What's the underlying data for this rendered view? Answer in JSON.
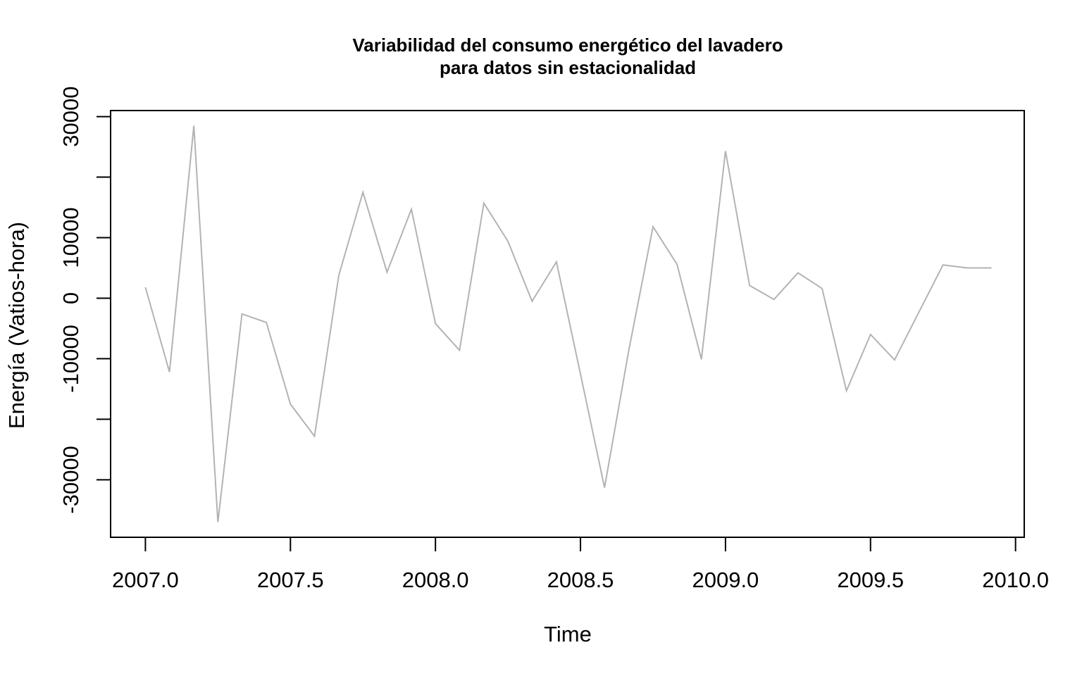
{
  "chart_data": {
    "type": "line",
    "title": "Variabilidad del consumo energético del lavadero",
    "subtitle": "para datos sin estacionalidad",
    "xlabel": "Time",
    "ylabel": "Energía (Vatios-hora)",
    "xlim": [
      2006.88,
      2010.03
    ],
    "ylim": [
      -39500,
      31000
    ],
    "x_ticks": [
      {
        "value": 2007.0,
        "label": "2007.0"
      },
      {
        "value": 2007.5,
        "label": "2007.5"
      },
      {
        "value": 2008.0,
        "label": "2008.0"
      },
      {
        "value": 2008.5,
        "label": "2008.5"
      },
      {
        "value": 2009.0,
        "label": "2009.0"
      },
      {
        "value": 2009.5,
        "label": "2009.5"
      },
      {
        "value": 2010.0,
        "label": "2010.0"
      }
    ],
    "y_ticks": [
      {
        "value": 30000,
        "label": "30000"
      },
      {
        "value": 20000,
        "label": ""
      },
      {
        "value": 10000,
        "label": "10000"
      },
      {
        "value": 0,
        "label": "0"
      },
      {
        "value": -10000,
        "label": "-10000"
      },
      {
        "value": -20000,
        "label": ""
      },
      {
        "value": -30000,
        "label": "-30000"
      }
    ],
    "grid": false,
    "line_color": "#b3b3b3",
    "series": [
      {
        "name": "",
        "x": [
          2007.0,
          2007.083,
          2007.167,
          2007.25,
          2007.333,
          2007.417,
          2007.5,
          2007.583,
          2007.667,
          2007.75,
          2007.833,
          2007.917,
          2008.0,
          2008.083,
          2008.167,
          2008.25,
          2008.333,
          2008.417,
          2008.5,
          2008.583,
          2008.667,
          2008.75,
          2008.833,
          2008.917,
          2009.0,
          2009.083,
          2009.167,
          2009.25,
          2009.333,
          2009.417,
          2009.5,
          2009.583,
          2009.667,
          2009.75,
          2009.833,
          2009.917
        ],
        "values": [
          1800,
          -12200,
          28500,
          -37000,
          -2600,
          -4000,
          -17500,
          -22800,
          3800,
          17500,
          4300,
          14700,
          -4200,
          -8600,
          15700,
          9400,
          -500,
          6000,
          -12500,
          -31300,
          -8500,
          11800,
          5600,
          -10100,
          24300,
          2100,
          -200,
          4200,
          1600,
          -15300,
          -6000,
          -10200,
          -2300,
          5500,
          5000,
          5000
        ]
      }
    ]
  }
}
